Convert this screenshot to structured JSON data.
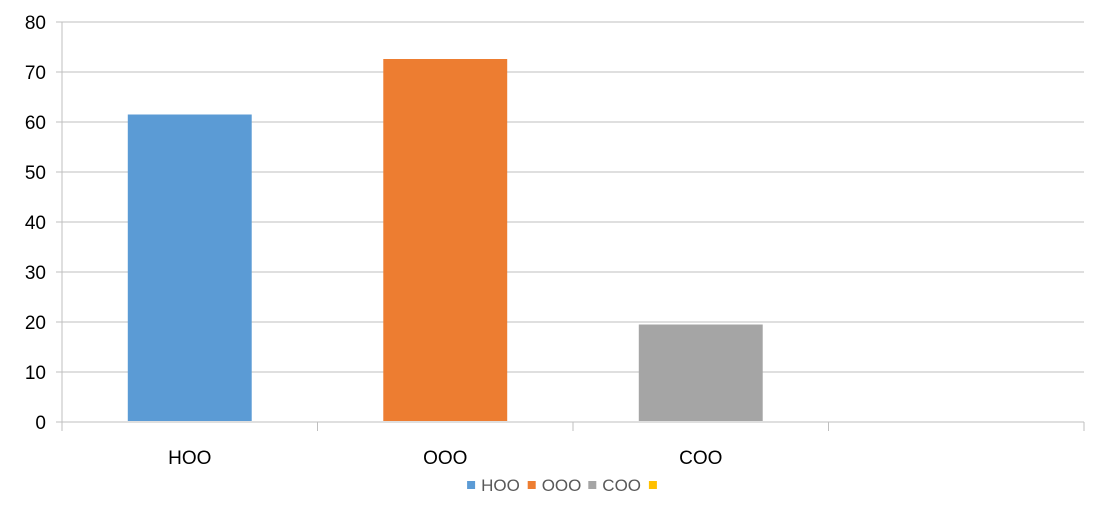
{
  "chart_data": {
    "type": "bar",
    "title": "",
    "xlabel": "",
    "ylabel": "",
    "categories": [
      "HOO",
      "OOO",
      "COO",
      ""
    ],
    "ylim": [
      0,
      80
    ],
    "yticks": [
      0,
      10,
      20,
      30,
      40,
      50,
      60,
      70,
      80
    ],
    "grid": true,
    "legend_position": "bottom",
    "series": [
      {
        "name": "HOO",
        "color": "#5B9BD5",
        "values": [
          61.5,
          null,
          null,
          null
        ]
      },
      {
        "name": "OOO",
        "color": "#ED7D31",
        "values": [
          null,
          72.6,
          null,
          null
        ]
      },
      {
        "name": "COO",
        "color": "#A5A5A5",
        "values": [
          null,
          null,
          19.5,
          null
        ]
      },
      {
        "name": "",
        "color": "#FFC000",
        "values": [
          null,
          null,
          null,
          null
        ]
      }
    ]
  }
}
